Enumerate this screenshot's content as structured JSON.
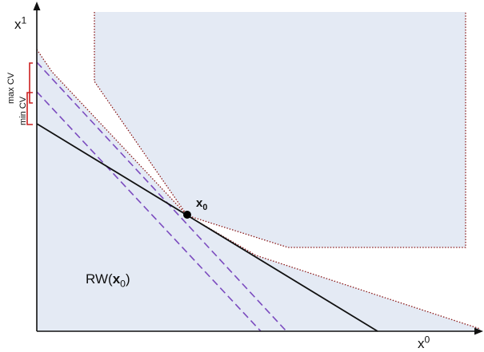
{
  "labels": {
    "y_axis": {
      "base": "x",
      "sup": "1"
    },
    "x_axis": {
      "base": "x",
      "sup": "0"
    },
    "point": {
      "base": "x",
      "sub": "0"
    },
    "region": {
      "prefix": "RW(",
      "var": "x",
      "sub": "0",
      "suffix": ")"
    },
    "max_cv": "max CV",
    "min_cv": "min CV"
  },
  "colors": {
    "region_fill": "#e4eaf4",
    "axis": "#111111",
    "budget_line": "#111111",
    "dotted_bound": "#8b1a1a",
    "dashed_lines": "#7b4bbf",
    "bracket": "#cc1f1f",
    "point": "#000000"
  }
}
